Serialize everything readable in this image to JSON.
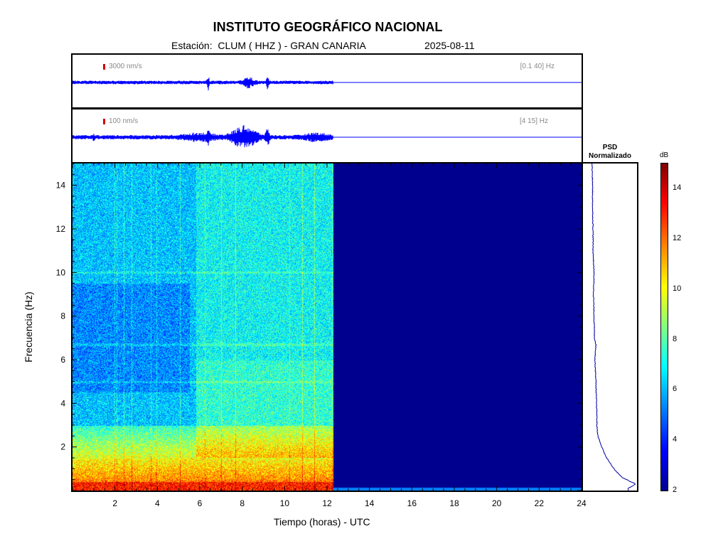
{
  "header": {
    "title": "INSTITUTO GEOGRÁFICO NACIONAL",
    "station": "Estación:  CLUM ( HHZ ) - GRAN CANARIA",
    "date": "2025-08-11"
  },
  "trace1": {
    "scale_label": "3000 nm/s",
    "band_label": "[0.1 40] Hz",
    "color": "#0000ff"
  },
  "trace2": {
    "scale_label": "100 nm/s",
    "band_label": "[4 15] Hz",
    "color": "#0000ff"
  },
  "psd": {
    "title": "PSD",
    "subtitle": "Normalizado"
  },
  "colorbar": {
    "unit": "dB",
    "ticks": [
      "2",
      "4",
      "6",
      "8",
      "10",
      "12",
      "14"
    ],
    "range": [
      2,
      15
    ]
  },
  "chart_data": {
    "type": "heatmap",
    "xlabel": "Tiempo (horas) - UTC",
    "ylabel": "Frecuencia  (Hz)",
    "xlim": [
      0,
      24
    ],
    "ylim": [
      0,
      15
    ],
    "x_ticks": [
      "2",
      "4",
      "6",
      "8",
      "10",
      "12",
      "14",
      "16",
      "18",
      "20",
      "22",
      "24"
    ],
    "y_ticks": [
      "2",
      "4",
      "6",
      "8",
      "10",
      "12",
      "14"
    ],
    "data_end_hour": 12.3,
    "no_data_color": "#00008f",
    "colormap": "jet",
    "psd_profile": {
      "frequency_hz": [
        0.1,
        0.3,
        0.6,
        1.0,
        1.5,
        2.0,
        2.5,
        3.0,
        3.5,
        4.0,
        5.0,
        6.0,
        6.7,
        7.0,
        8.0,
        9.0,
        10.0,
        11.0,
        12.0,
        13.0,
        14.0,
        15.0
      ],
      "normalized_level": [
        0.85,
        1.0,
        0.72,
        0.55,
        0.4,
        0.3,
        0.22,
        0.2,
        0.2,
        0.19,
        0.18,
        0.16,
        0.18,
        0.15,
        0.14,
        0.13,
        0.14,
        0.12,
        0.12,
        0.11,
        0.11,
        0.1
      ]
    }
  }
}
